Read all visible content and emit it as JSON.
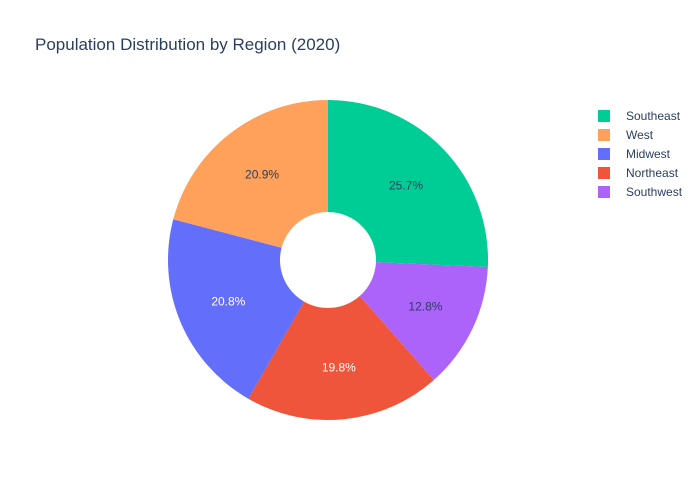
{
  "chart_data": {
    "type": "pie",
    "title": "Population Distribution by Region (2020)",
    "hole": true,
    "categories": [
      "Southeast",
      "West",
      "Midwest",
      "Northeast",
      "Southwest"
    ],
    "values": [
      25.7,
      20.9,
      20.8,
      19.8,
      12.8
    ],
    "labels": [
      "25.7%",
      "20.9%",
      "20.8%",
      "19.8%",
      "12.8%"
    ],
    "colors": [
      "#00cc96",
      "#ffa15a",
      "#636efa",
      "#ef553b",
      "#ab63fa"
    ],
    "slice_order": [
      "Southeast",
      "Southwest",
      "Northeast",
      "Midwest",
      "West"
    ],
    "direction": "clockwise",
    "start_angle": "top",
    "legend_position": "right"
  }
}
